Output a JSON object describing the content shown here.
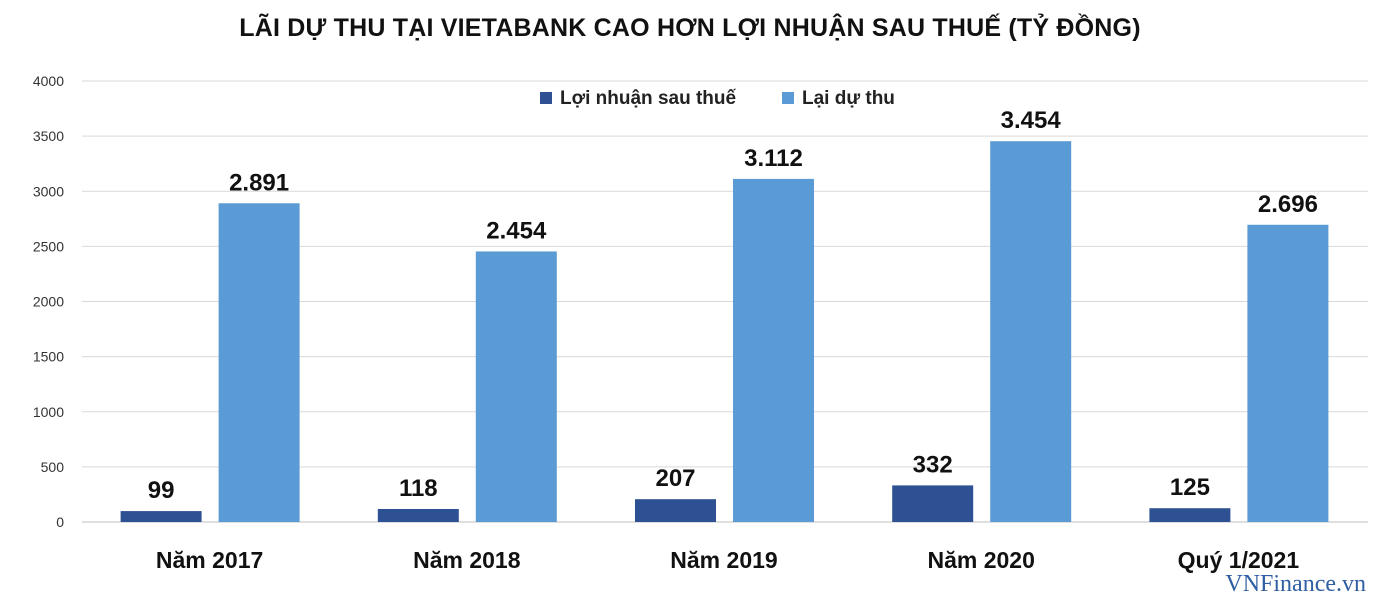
{
  "chart_data": {
    "type": "bar",
    "title": "LÃI DỰ THU TẠI VIETABANK CAO HƠN LỢI NHUẬN SAU THUẾ (TỶ ĐỒNG)",
    "categories": [
      "Năm 2017",
      "Năm 2018",
      "Năm 2019",
      "Năm 2020",
      "Quý 1/2021"
    ],
    "series": [
      {
        "name": "Lợi nhuận sau thuế",
        "color": "#2e5193",
        "values": [
          99,
          118,
          207,
          332,
          125
        ],
        "labels": [
          "99",
          "118",
          "207",
          "332",
          "125"
        ]
      },
      {
        "name": "Lại dự thu",
        "color": "#5b9bd5",
        "values": [
          2891,
          2454,
          3112,
          3454,
          2696
        ],
        "labels": [
          "2.891",
          "2.454",
          "3.112",
          "3.454",
          "2.696"
        ]
      }
    ],
    "ylim": [
      0,
      4000
    ],
    "yticks": [
      0,
      500,
      1000,
      1500,
      2000,
      2500,
      3000,
      3500,
      4000
    ],
    "xlabel": "",
    "ylabel": "",
    "grid": true,
    "legend_position": "top-center"
  },
  "watermark": "VNFinance.vn"
}
